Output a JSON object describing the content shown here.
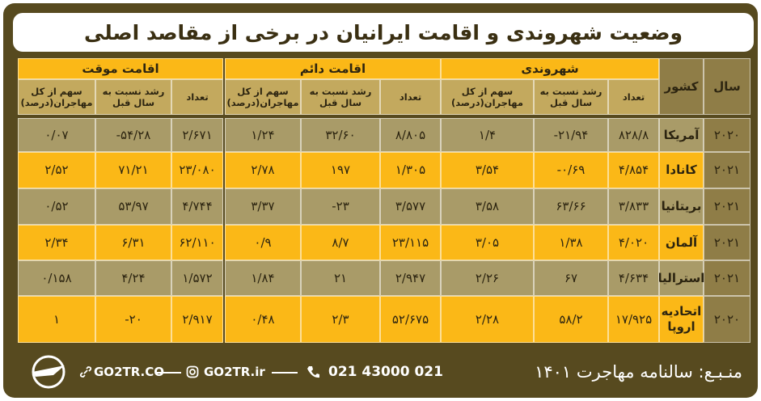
{
  "title": "وضعیت شهروندی و اقامت ایرانیان در برخی از مقاصد اصلی",
  "table": {
    "headers": {
      "year": "سال",
      "country": "کشور",
      "groups": [
        {
          "label": "شهروندی",
          "columns": [
            "تعداد",
            "رشد نسبت به سال قبل",
            "سهم از کل مهاجران(درصد)"
          ]
        },
        {
          "label": "اقامت دائم",
          "columns": [
            "تعداد",
            "رشد نسبت به سال قبل",
            "سهم از کل مهاجران(درصد)"
          ]
        },
        {
          "label": "اقامت موقت",
          "columns": [
            "تعداد",
            "رشد نسبت به سال قبل",
            "سهم از کل مهاجران(درصد)"
          ]
        }
      ]
    },
    "rows": [
      [
        "۲۰۲۰",
        "آمریکا",
        "۸۲۸/۸",
        "-۲۱/۹۴",
        "۱/۴",
        "۸/۸۰۵",
        "۳۲/۶۰",
        "۱/۲۴",
        "۲/۶۷۱",
        "-۵۴/۲۸",
        "۰/۰۷"
      ],
      [
        "۲۰۲۱",
        "کانادا",
        "۴/۸۵۴",
        "-۰/۶۹",
        "۳/۵۴",
        "۱/۳۰۵",
        "۱۹۷",
        "۲/۷۸",
        "۲۳/۰۸۰",
        "۷۱/۲۱",
        "۲/۵۲"
      ],
      [
        "۲۰۲۱",
        "بریتانیا",
        "۳/۸۳۳",
        "۶۳/۶۶",
        "۳/۵۸",
        "۳/۵۷۷",
        "-۲۳",
        "۳/۳۷",
        "۴/۷۴۴",
        "۵۳/۹۷",
        "۰/۵۲"
      ],
      [
        "۲۰۲۱",
        "آلمان",
        "۴/۰۲۰",
        "۱/۳۸",
        "۳/۰۵",
        "۲۳/۱۱۵",
        "۸/۷",
        "۰/۹",
        "۶۲/۱۱۰",
        "۶/۳۱",
        "۲/۳۴"
      ],
      [
        "۲۰۲۱",
        "استرالیا",
        "۴/۶۳۴",
        "۶۷",
        "۲/۲۶",
        "۲/۹۴۷",
        "۲۱",
        "۱/۸۴",
        "۱/۵۷۲",
        "۴/۲۴",
        "۰/۱۵۸"
      ],
      [
        "۲۰۲۰",
        "اتحادیه اروپا",
        "۱۷/۹۲۵",
        "۵۸/۲",
        "۲/۲۸",
        "۵۲/۶۷۵",
        "۲/۳",
        "۰/۴۸",
        "۲/۹۱۷",
        "-۲۰",
        "۱"
      ]
    ]
  },
  "footer": {
    "source": "منـبـع: سالنامه مهاجرت ۱۴۰۱",
    "phone": "021 43000 021",
    "site": "GO2TR.ir",
    "site2": "GO2TR.CO"
  }
}
